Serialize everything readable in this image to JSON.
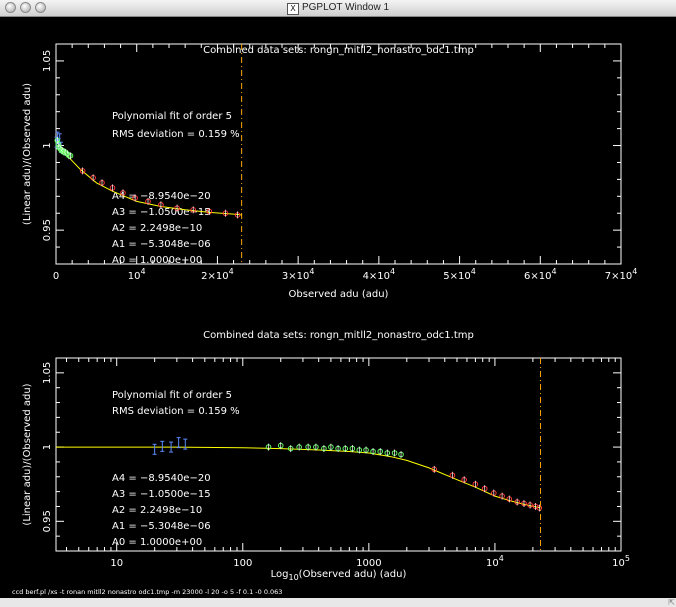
{
  "window": {
    "title": "PGPLOT Window 1",
    "icon": "x11-icon"
  },
  "footer_command": "ccd berf.pl /xs -t ronan mitll2 nonastro odc1.tmp -m 23000 -l 20 -o 5 -f 0.1 -0 0.063",
  "colors": {
    "background": "#000000",
    "axes": "#ffffff",
    "fit_curve": "#ffff00",
    "limit_line": "#ffa500",
    "points_red": "#ff3a3a",
    "points_green": "#66ff66",
    "points_blue": "#5b8cff"
  },
  "chart_data": [
    {
      "type": "scatter",
      "title": "Combined data sets: rongn_mitll2_nonastro_odc1.tmp",
      "xlabel": "Observed adu (adu)",
      "ylabel": "(Linear adu)/(Observed adu)",
      "xlim": [
        0,
        70000
      ],
      "ylim": [
        0.93,
        1.06
      ],
      "x_scale": "linear",
      "x_tick_values": [
        0,
        10000,
        20000,
        30000,
        40000,
        50000,
        60000,
        70000
      ],
      "x_tick_labels": [
        {
          "m": "0",
          "e": ""
        },
        {
          "m": "10",
          "e": "4"
        },
        {
          "m": "2×10",
          "e": "4"
        },
        {
          "m": "3×10",
          "e": "4"
        },
        {
          "m": "4×10",
          "e": "4"
        },
        {
          "m": "5×10",
          "e": "4"
        },
        {
          "m": "6×10",
          "e": "4"
        },
        {
          "m": "7×10",
          "e": "4"
        }
      ],
      "y_tick_values": [
        0.95,
        1.0,
        1.05
      ],
      "y_tick_labels": [
        "0.95",
        "1",
        "1.05"
      ],
      "limit_x": 23000,
      "annotations": {
        "fit_order": "Polynomial fit of order  5",
        "rms": "RMS deviation =     0.159 %",
        "coefficients": [
          "A4 = −8.9540e−20",
          "A3 = −1.0500e−15",
          "A2 =  2.2498e−10",
          "A1 = −5.3048e−06",
          "A0 =  1.0000e+00"
        ]
      },
      "series": [
        {
          "color": "blue",
          "marker": "errorbar",
          "x": [
            60,
            200,
            320,
            450,
            600
          ],
          "y": [
            1.002,
            1.005,
            1.001,
            1.004,
            0.999
          ]
        },
        {
          "color": "green",
          "marker": "circle",
          "x": [
            160,
            260,
            380,
            520,
            680,
            840,
            1000,
            1200,
            1400,
            1600,
            1800
          ],
          "y": [
            1.003,
            1.001,
            0.999,
            0.998,
            0.997,
            0.997,
            0.996,
            0.996,
            0.995,
            0.994,
            0.994
          ]
        },
        {
          "color": "red",
          "marker": "circle",
          "x": [
            3300,
            4600,
            5700,
            7000,
            8300,
            9800,
            11400,
            13000,
            15000,
            17000,
            19000,
            21000,
            22500
          ],
          "y": [
            0.985,
            0.981,
            0.978,
            0.975,
            0.972,
            0.969,
            0.967,
            0.965,
            0.963,
            0.962,
            0.961,
            0.96,
            0.959
          ]
        }
      ],
      "fit_curve": {
        "x": [
          0,
          500,
          1000,
          2000,
          3000,
          5000,
          7000,
          10000,
          13000,
          16000,
          19000,
          22000,
          23000
        ],
        "y": [
          1.0,
          0.998,
          0.996,
          0.991,
          0.986,
          0.978,
          0.973,
          0.967,
          0.964,
          0.962,
          0.9605,
          0.9595,
          0.959
        ]
      }
    },
    {
      "type": "scatter",
      "title": "Combined data sets: rongn_mitll2_nonastro_odc1.tmp",
      "xlabel_prefix": "Log",
      "xlabel_sub": "10",
      "xlabel_suffix": "(Observed adu) (adu)",
      "ylabel": "(Linear adu)/(Observed adu)",
      "xlim": [
        3.3,
        100000
      ],
      "ylim": [
        0.93,
        1.06
      ],
      "x_scale": "log",
      "x_tick_values": [
        10,
        100,
        1000,
        10000,
        100000
      ],
      "x_tick_labels": [
        {
          "m": "10",
          "e": ""
        },
        {
          "m": "100",
          "e": ""
        },
        {
          "m": "1000",
          "e": ""
        },
        {
          "m": "10",
          "e": "4"
        },
        {
          "m": "10",
          "e": "5"
        }
      ],
      "y_tick_values": [
        0.95,
        1.0,
        1.05
      ],
      "y_tick_labels": [
        "0.95",
        "1",
        "1.05"
      ],
      "limit_x": 23000,
      "annotations": {
        "fit_order": "Polynomial fit of order  5",
        "rms": "RMS deviation =     0.159 %",
        "coefficients": [
          "A4 = −8.9540e−20",
          "A3 = −1.0500e−15",
          "A2 =  2.2498e−10",
          "A1 = −5.3048e−06",
          "A0 =  1.0000e+00"
        ]
      },
      "series": [
        {
          "color": "blue",
          "marker": "errorbar",
          "x": [
            20,
            23,
            27,
            31,
            35
          ],
          "y": [
            0.9985,
            1.0005,
            1.0,
            1.003,
            1.002
          ]
        },
        {
          "color": "green",
          "marker": "circle",
          "x": [
            160,
            200,
            240,
            280,
            330,
            380,
            440,
            500,
            570,
            650,
            740,
            840,
            950,
            1080,
            1230,
            1400,
            1600,
            1800
          ],
          "y": [
            1.0,
            1.001,
            0.999,
            1.0,
            1.0,
            1.0,
            0.999,
            1.0,
            0.999,
            0.999,
            0.999,
            0.998,
            0.998,
            0.997,
            0.997,
            0.996,
            0.996,
            0.995
          ]
        },
        {
          "color": "red",
          "marker": "circle",
          "x": [
            3300,
            4600,
            5700,
            7000,
            8300,
            9800,
            11400,
            13000,
            15000,
            17000,
            19000,
            21000,
            22500
          ],
          "y": [
            0.985,
            0.981,
            0.978,
            0.975,
            0.972,
            0.969,
            0.967,
            0.965,
            0.963,
            0.962,
            0.961,
            0.96,
            0.959
          ]
        }
      ],
      "fit_curve": {
        "x": [
          3.3,
          10,
          30,
          100,
          200,
          400,
          700,
          1000,
          1500,
          2000,
          3000,
          5000,
          7000,
          10000,
          13000,
          16000,
          19000,
          23000
        ],
        "y": [
          1.0,
          1.0,
          1.0,
          0.9995,
          0.999,
          0.998,
          0.997,
          0.996,
          0.9935,
          0.991,
          0.986,
          0.978,
          0.973,
          0.967,
          0.964,
          0.962,
          0.9605,
          0.959
        ]
      }
    }
  ]
}
